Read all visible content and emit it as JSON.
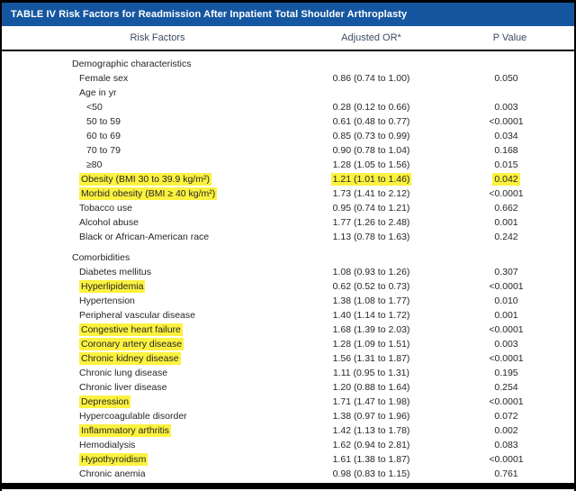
{
  "colors": {
    "title_bar_bg": "#1556a0",
    "title_text": "#ffffff",
    "column_header_text": "#3a4a63",
    "body_text": "#262626",
    "highlight": "#fcf23f",
    "frame": "#000000"
  },
  "header": {
    "title": "TABLE IV Risk Factors for Readmission After Inpatient Total Shoulder Arthroplasty"
  },
  "columns": [
    "Risk Factors",
    "Adjusted OR*",
    "P Value"
  ],
  "table": {
    "rows": [
      {
        "label": "Demographic characteristics",
        "indent": 1,
        "section": true,
        "or": "",
        "p": "",
        "hl": "none"
      },
      {
        "label": "Female sex",
        "indent": 2,
        "or": "0.86 (0.74 to 1.00)",
        "p": "0.050",
        "hl": "none"
      },
      {
        "label": "Age in yr",
        "indent": 2,
        "or": "",
        "p": "",
        "hl": "none"
      },
      {
        "label": "<50",
        "indent": 3,
        "or": "0.28 (0.12 to 0.66)",
        "p": "0.003",
        "hl": "none"
      },
      {
        "label": "50 to 59",
        "indent": 3,
        "or": "0.61 (0.48 to 0.77)",
        "p": "<0.0001",
        "hl": "none"
      },
      {
        "label": "60 to 69",
        "indent": 3,
        "or": "0.85 (0.73 to 0.99)",
        "p": "0.034",
        "hl": "none"
      },
      {
        "label": "70 to 79",
        "indent": 3,
        "or": "0.90 (0.78 to 1.04)",
        "p": "0.168",
        "hl": "none"
      },
      {
        "label": "≥80",
        "indent": 3,
        "or": "1.28 (1.05 to 1.56)",
        "p": "0.015",
        "hl": "none"
      },
      {
        "label": "Obesity (BMI 30 to 39.9 kg/m²)",
        "indent": 2,
        "or": "1.21 (1.01 to 1.46)",
        "p": "0.042",
        "hl": "row"
      },
      {
        "label": "Morbid obesity (BMI ≥ 40 kg/m²)",
        "indent": 2,
        "or": "1.73 (1.41 to 2.12)",
        "p": "<0.0001",
        "hl": "label"
      },
      {
        "label": "Tobacco use",
        "indent": 2,
        "or": "0.95 (0.74 to 1.21)",
        "p": "0.662",
        "hl": "none"
      },
      {
        "label": "Alcohol abuse",
        "indent": 2,
        "or": "1.77 (1.26 to 2.48)",
        "p": "0.001",
        "hl": "none"
      },
      {
        "label": "Black or African-American race",
        "indent": 2,
        "or": "1.13 (0.78 to 1.63)",
        "p": "0.242",
        "hl": "none"
      },
      {
        "label": "Comorbidities",
        "indent": 1,
        "section": true,
        "gap": true,
        "or": "",
        "p": "",
        "hl": "none"
      },
      {
        "label": "Diabetes mellitus",
        "indent": 2,
        "or": "1.08 (0.93 to 1.26)",
        "p": "0.307",
        "hl": "none"
      },
      {
        "label": "Hyperlipidemia",
        "indent": 2,
        "or": "0.62 (0.52 to 0.73)",
        "p": "<0.0001",
        "hl": "label"
      },
      {
        "label": "Hypertension",
        "indent": 2,
        "or": "1.38 (1.08 to 1.77)",
        "p": "0.010",
        "hl": "none"
      },
      {
        "label": "Peripheral vascular disease",
        "indent": 2,
        "or": "1.40 (1.14 to 1.72)",
        "p": "0.001",
        "hl": "none"
      },
      {
        "label": "Congestive heart failure",
        "indent": 2,
        "or": "1.68 (1.39 to 2.03)",
        "p": "<0.0001",
        "hl": "label"
      },
      {
        "label": "Coronary artery disease",
        "indent": 2,
        "or": "1.28 (1.09 to 1.51)",
        "p": "0.003",
        "hl": "label"
      },
      {
        "label": "Chronic kidney disease",
        "indent": 2,
        "or": "1.56 (1.31 to 1.87)",
        "p": "<0.0001",
        "hl": "label"
      },
      {
        "label": "Chronic lung disease",
        "indent": 2,
        "or": "1.11 (0.95 to 1.31)",
        "p": "0.195",
        "hl": "none"
      },
      {
        "label": "Chronic liver disease",
        "indent": 2,
        "or": "1.20 (0.88 to 1.64)",
        "p": "0.254",
        "hl": "none"
      },
      {
        "label": "Depression",
        "indent": 2,
        "or": "1.71 (1.47 to 1.98)",
        "p": "<0.0001",
        "hl": "label"
      },
      {
        "label": "Hypercoagulable disorder",
        "indent": 2,
        "or": "1.38 (0.97 to 1.96)",
        "p": "0.072",
        "hl": "none"
      },
      {
        "label": "Inflammatory arthritis",
        "indent": 2,
        "or": "1.42 (1.13 to 1.78)",
        "p": "0.002",
        "hl": "label"
      },
      {
        "label": "Hemodialysis",
        "indent": 2,
        "or": "1.62 (0.94 to 2.81)",
        "p": "0.083",
        "hl": "none"
      },
      {
        "label": "Hypothyroidism",
        "indent": 2,
        "or": "1.61 (1.38 to 1.87)",
        "p": "<0.0001",
        "hl": "label"
      },
      {
        "label": "Chronic anemia",
        "indent": 2,
        "or": "0.98 (0.83 to 1.15)",
        "p": "0.761",
        "hl": "none"
      }
    ]
  }
}
